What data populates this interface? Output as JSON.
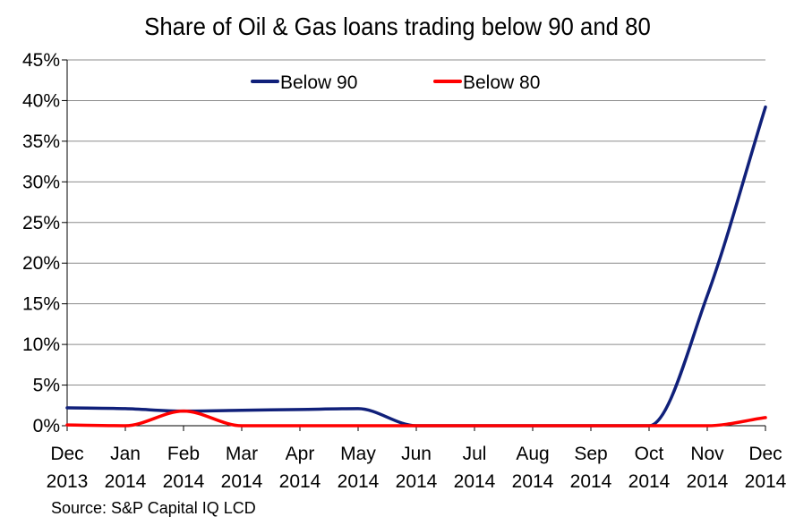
{
  "chart_data": {
    "type": "line",
    "title": "Share of Oil & Gas loans trading below 90 and 80",
    "source": "Source: S&P Capital IQ LCD",
    "categories": [
      [
        "Dec",
        "2013"
      ],
      [
        "Jan",
        "2014"
      ],
      [
        "Feb",
        "2014"
      ],
      [
        "Mar",
        "2014"
      ],
      [
        "Apr",
        "2014"
      ],
      [
        "May",
        "2014"
      ],
      [
        "Jun",
        "2014"
      ],
      [
        "Jul",
        "2014"
      ],
      [
        "Aug",
        "2014"
      ],
      [
        "Sep",
        "2014"
      ],
      [
        "Oct",
        "2014"
      ],
      [
        "Nov",
        "2014"
      ],
      [
        "Dec",
        "2014"
      ]
    ],
    "yticks": [
      "0%",
      "5%",
      "10%",
      "15%",
      "20%",
      "25%",
      "30%",
      "35%",
      "40%",
      "45%"
    ],
    "ylim": [
      0,
      45
    ],
    "grid": true,
    "legend_position": "top",
    "series": [
      {
        "name": "Below 90",
        "color": "#10207a",
        "values": [
          2.2,
          2.1,
          1.8,
          1.9,
          2.0,
          2.1,
          0.0,
          0.0,
          0.0,
          0.0,
          0.0,
          16.0,
          39.2
        ]
      },
      {
        "name": "Below 80",
        "color": "#ff0000",
        "values": [
          0.1,
          0.0,
          1.8,
          0.0,
          0.0,
          0.0,
          0.0,
          0.0,
          0.0,
          0.0,
          0.0,
          0.0,
          1.0
        ]
      }
    ]
  }
}
